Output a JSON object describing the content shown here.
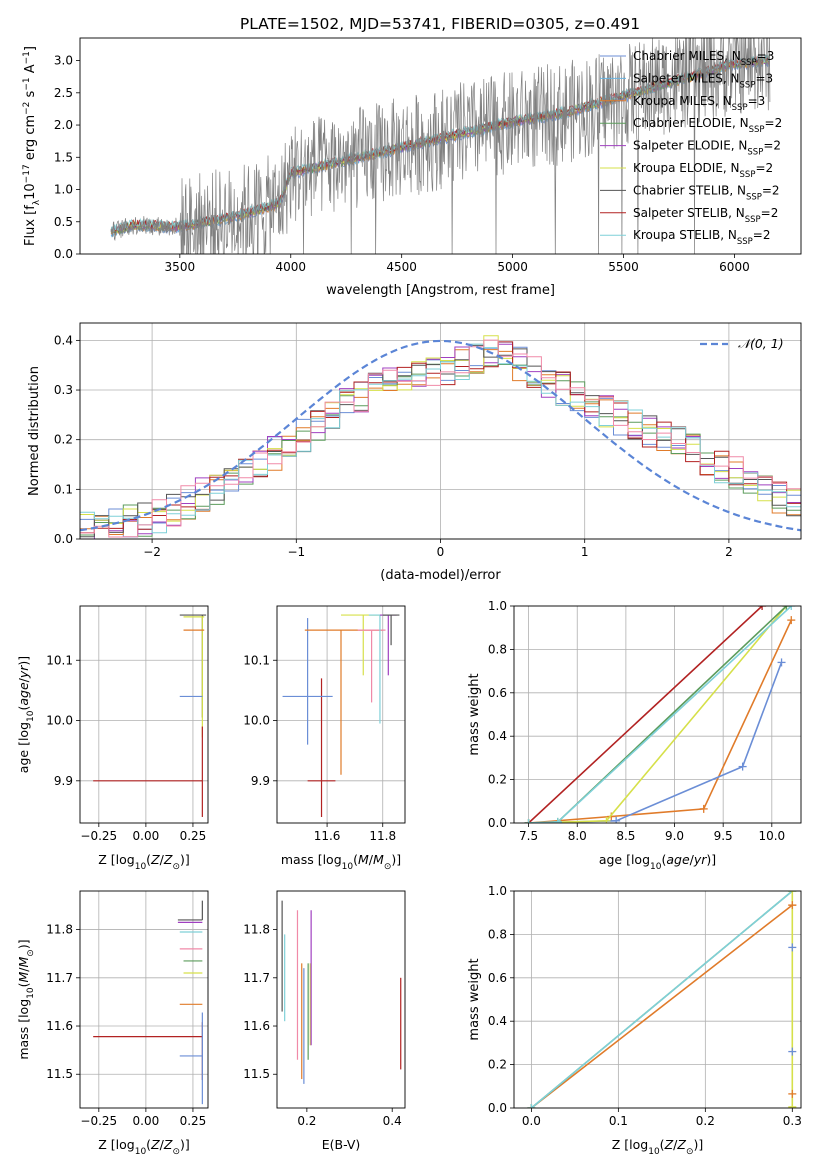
{
  "figure": {
    "title": "PLATE=1502, MJD=53741, FIBERID=0305, z=0.491"
  },
  "chart_data": [
    {
      "id": "spectrum",
      "type": "line",
      "xlabel": "wavelength [Angstrom, rest frame]",
      "ylabel": "Flux [f_λ 10^-17 erg cm^-2 s^-1 A^-1]",
      "xlim": [
        3050,
        6300
      ],
      "ylim": [
        0,
        3.35
      ],
      "xticks": [
        3500,
        4000,
        4500,
        5000,
        5500,
        6000
      ],
      "yticks": [
        0.0,
        0.5,
        1.0,
        1.5,
        2.0,
        2.5,
        3.0
      ],
      "grid": false,
      "legend_position": "top-right",
      "data_color": "#808080",
      "data_range": [
        3190,
        6160
      ],
      "continuum": [
        {
          "x": 3190,
          "y": 0.35
        },
        {
          "x": 3300,
          "y": 0.45
        },
        {
          "x": 3500,
          "y": 0.42
        },
        {
          "x": 3750,
          "y": 0.58
        },
        {
          "x": 3950,
          "y": 0.78
        },
        {
          "x": 4000,
          "y": 1.25
        },
        {
          "x": 4250,
          "y": 1.45
        },
        {
          "x": 4500,
          "y": 1.65
        },
        {
          "x": 4750,
          "y": 1.85
        },
        {
          "x": 5000,
          "y": 2.05
        },
        {
          "x": 5250,
          "y": 2.2
        },
        {
          "x": 5500,
          "y": 2.45
        },
        {
          "x": 5750,
          "y": 2.7
        },
        {
          "x": 6000,
          "y": 2.95
        },
        {
          "x": 6160,
          "y": 3.0
        }
      ],
      "series": [
        {
          "name": "Chabrier MILES, N_SSP=3",
          "color": "#6b8ed6"
        },
        {
          "name": "Salpeter MILES, N_SSP=3",
          "color": "#69b3e0"
        },
        {
          "name": "Kroupa MILES, N_SSP=3",
          "color": "#e07b2a"
        },
        {
          "name": "Chabrier ELODIE, N_SSP=2",
          "color": "#5c9c5c"
        },
        {
          "name": "Salpeter ELODIE, N_SSP=2",
          "color": "#a040c0"
        },
        {
          "name": "Kroupa ELODIE, N_SSP=2",
          "color": "#d6e04a"
        },
        {
          "name": "Chabrier STELIB, N_SSP=2",
          "color": "#555555"
        },
        {
          "name": "Salpeter STELIB, N_SSP=2",
          "color": "#b22222"
        },
        {
          "name": "Kroupa STELIB, N_SSP=2",
          "color": "#7fd0d8"
        }
      ]
    },
    {
      "id": "residuals",
      "type": "line",
      "xlabel": "(data-model)/error",
      "ylabel": "Normed distribution",
      "xlim": [
        -2.5,
        2.5
      ],
      "ylim": [
        0,
        0.435
      ],
      "xticks": [
        -2,
        -1,
        0,
        1,
        2
      ],
      "yticks": [
        0.0,
        0.1,
        0.2,
        0.3,
        0.4
      ],
      "grid": true,
      "legend_position": "top-right",
      "gaussian": {
        "name": "𝒩(0, 1)",
        "color": "#5b85d6",
        "mu": 0,
        "sigma": 1
      },
      "histogram_colors": [
        "#6b8ed6",
        "#e07b2a",
        "#5c9c5c",
        "#a040c0",
        "#d6e04a",
        "#555555",
        "#b22222",
        "#7fd0d8",
        "#f08aa8"
      ],
      "histogram_envelope": [
        {
          "x": -2.5,
          "y": 0.03
        },
        {
          "x": -2.0,
          "y": 0.04
        },
        {
          "x": -1.5,
          "y": 0.11
        },
        {
          "x": -1.0,
          "y": 0.2
        },
        {
          "x": -0.5,
          "y": 0.3
        },
        {
          "x": 0.0,
          "y": 0.34
        },
        {
          "x": 0.4,
          "y": 0.38
        },
        {
          "x": 0.8,
          "y": 0.31
        },
        {
          "x": 1.2,
          "y": 0.25
        },
        {
          "x": 1.6,
          "y": 0.2
        },
        {
          "x": 2.0,
          "y": 0.14
        },
        {
          "x": 2.5,
          "y": 0.06
        }
      ]
    },
    {
      "id": "age-vs-Z",
      "type": "scatter",
      "xlabel": "Z [log10(Z/Z⊙)]",
      "ylabel": "age [log10(age/yr)]",
      "xlim": [
        -0.35,
        0.33
      ],
      "ylim": [
        9.83,
        10.19
      ],
      "xticks": [
        "-0.25",
        "0.00",
        "0.25"
      ],
      "yticks": [
        "9.9",
        "10.0",
        "10.1"
      ],
      "grid": true,
      "points": [
        {
          "x": 0.3,
          "y": 10.175,
          "xerr": [
            0.12,
            0.02
          ],
          "yerr": [
            0.17,
            0.0
          ],
          "color": "#555555"
        },
        {
          "x": 0.3,
          "y": 10.172,
          "xerr": [
            0.1,
            0.01
          ],
          "yerr": [
            0.2,
            0.0
          ],
          "color": "#d6e04a"
        },
        {
          "x": 0.3,
          "y": 10.15,
          "xerr": [
            0.1,
            0.01
          ],
          "yerr": [
            0.0,
            0.0
          ],
          "color": "#e07b2a"
        },
        {
          "x": 0.3,
          "y": 10.04,
          "xerr": [
            0.12,
            0.0
          ],
          "yerr": [
            0.0,
            0.0
          ],
          "color": "#6b8ed6"
        },
        {
          "x": 0.3,
          "y": 9.9,
          "xerr": [
            0.58,
            0.0
          ],
          "yerr": [
            0.06,
            0.09
          ],
          "color": "#b22222"
        }
      ]
    },
    {
      "id": "age-vs-mass",
      "type": "scatter",
      "xlabel": "mass [log10(M/M⊙)]",
      "ylabel": "",
      "xlim": [
        11.42,
        11.88
      ],
      "ylim": [
        9.83,
        10.19
      ],
      "xticks": [
        "11.6",
        "11.8"
      ],
      "yticks": [
        "9.9",
        "10.0",
        "10.1"
      ],
      "grid": true,
      "points": [
        {
          "x": 11.58,
          "y": 9.9,
          "xerr": [
            0.05,
            0.05
          ],
          "yerr": [
            0.06,
            0.17
          ],
          "color": "#b22222"
        },
        {
          "x": 11.53,
          "y": 10.04,
          "xerr": [
            0.09,
            0.09
          ],
          "yerr": [
            0.08,
            0.13
          ],
          "color": "#6b8ed6"
        },
        {
          "x": 11.65,
          "y": 10.15,
          "xerr": [
            0.13,
            0.15
          ],
          "yerr": [
            0.24,
            0.0
          ],
          "color": "#e07b2a"
        },
        {
          "x": 11.73,
          "y": 10.175,
          "xerr": [
            0.08,
            0.08
          ],
          "yerr": [
            0.1,
            0.0
          ],
          "color": "#d6e04a"
        },
        {
          "x": 11.76,
          "y": 10.15,
          "xerr": [
            0.05,
            0.05
          ],
          "yerr": [
            0.12,
            0.0
          ],
          "color": "#f08aa8"
        },
        {
          "x": 11.79,
          "y": 10.175,
          "xerr": [
            0.04,
            0.04
          ],
          "yerr": [
            0.18,
            0.0
          ],
          "color": "#7fd0d8"
        },
        {
          "x": 11.82,
          "y": 10.175,
          "xerr": [
            0.03,
            0.03
          ],
          "yerr": [
            0.1,
            0.0
          ],
          "color": "#a040c0"
        },
        {
          "x": 11.83,
          "y": 10.175,
          "xerr": [
            0.03,
            0.03
          ],
          "yerr": [
            0.05,
            0.0
          ],
          "color": "#555555"
        }
      ]
    },
    {
      "id": "mass-weight-vs-age",
      "type": "line",
      "xlabel": "age [log10(age/yr)]",
      "ylabel": "mass weight",
      "xlim": [
        7.35,
        10.3
      ],
      "ylim": [
        0,
        1
      ],
      "xticks": [
        7.5,
        8.0,
        8.5,
        9.0,
        9.5,
        10.0
      ],
      "yticks": [
        0.0,
        0.2,
        0.4,
        0.6,
        0.8,
        1.0
      ],
      "grid": true,
      "series": [
        {
          "color": "#b22222",
          "x": [
            7.5,
            9.9
          ],
          "y": [
            0.0,
            1.0
          ]
        },
        {
          "color": "#e07b2a",
          "x": [
            7.5,
            8.35,
            9.3,
            10.2
          ],
          "y": [
            0.0,
            0.03,
            0.065,
            0.935
          ]
        },
        {
          "color": "#6b8ed6",
          "x": [
            7.5,
            8.4,
            9.7,
            10.1
          ],
          "y": [
            0.0,
            0.01,
            0.26,
            0.74
          ]
        },
        {
          "color": "#d6e04a",
          "x": [
            7.5,
            8.3,
            10.15
          ],
          "y": [
            0.0,
            0.01,
            1.0
          ]
        },
        {
          "color": "#5c9c5c",
          "x": [
            7.5,
            7.8,
            10.15
          ],
          "y": [
            0.0,
            0.005,
            1.0
          ]
        },
        {
          "color": "#7fd0d8",
          "x": [
            7.5,
            7.8,
            10.2
          ],
          "y": [
            0.0,
            0.005,
            1.0
          ]
        }
      ]
    },
    {
      "id": "mass-vs-Z",
      "type": "scatter",
      "xlabel": "Z [log10(Z/Z⊙)]",
      "ylabel": "mass [log10(M/M⊙)]",
      "xlim": [
        -0.35,
        0.33
      ],
      "ylim": [
        11.43,
        11.88
      ],
      "xticks": [
        "-0.25",
        "0.00",
        "0.25"
      ],
      "yticks": [
        "11.5",
        "11.6",
        "11.7",
        "11.8"
      ],
      "grid": true,
      "points": [
        {
          "x": 0.3,
          "y": 11.578,
          "xerr": [
            0.58,
            0.0
          ],
          "yerr": [
            0.09,
            0.03
          ],
          "color": "#b22222"
        },
        {
          "x": 0.3,
          "y": 11.538,
          "xerr": [
            0.12,
            0.0
          ],
          "yerr": [
            0.1,
            0.09
          ],
          "color": "#6b8ed6"
        },
        {
          "x": 0.3,
          "y": 11.645,
          "xerr": [
            0.12,
            0.0
          ],
          "yerr": [
            0.0,
            0.0
          ],
          "color": "#e07b2a"
        },
        {
          "x": 0.3,
          "y": 11.71,
          "xerr": [
            0.1,
            0.0
          ],
          "yerr": [
            0.0,
            0.0
          ],
          "color": "#d6e04a"
        },
        {
          "x": 0.3,
          "y": 11.735,
          "xerr": [
            0.1,
            0.0
          ],
          "yerr": [
            0.0,
            0.0
          ],
          "color": "#5c9c5c"
        },
        {
          "x": 0.3,
          "y": 11.76,
          "xerr": [
            0.12,
            0.0
          ],
          "yerr": [
            0.0,
            0.0
          ],
          "color": "#f08aa8"
        },
        {
          "x": 0.3,
          "y": 11.795,
          "xerr": [
            0.12,
            0.0
          ],
          "yerr": [
            0.0,
            0.0
          ],
          "color": "#7fd0d8"
        },
        {
          "x": 0.3,
          "y": 11.815,
          "xerr": [
            0.13,
            0.0
          ],
          "yerr": [
            0.0,
            0.0
          ],
          "color": "#a040c0"
        },
        {
          "x": 0.3,
          "y": 11.82,
          "xerr": [
            0.13,
            0.0
          ],
          "yerr": [
            0.0,
            0.04
          ],
          "color": "#555555"
        }
      ]
    },
    {
      "id": "mass-vs-ebv",
      "type": "scatter",
      "xlabel": "E(B-V)",
      "ylabel": "",
      "xlim": [
        0.13,
        0.43
      ],
      "ylim": [
        11.43,
        11.88
      ],
      "xticks": [
        "0.2",
        "0.4"
      ],
      "yticks": [
        "11.5",
        "11.6",
        "11.7",
        "11.8"
      ],
      "grid": false,
      "points": [
        {
          "x": 0.142,
          "y": 11.78,
          "yerr": [
            0.15,
            0.08
          ],
          "color": "#555555"
        },
        {
          "x": 0.148,
          "y": 11.71,
          "yerr": [
            0.1,
            0.08
          ],
          "color": "#7fd0d8"
        },
        {
          "x": 0.178,
          "y": 11.65,
          "yerr": [
            0.12,
            0.19
          ],
          "color": "#f08aa8"
        },
        {
          "x": 0.188,
          "y": 11.6,
          "yerr": [
            0.11,
            0.13
          ],
          "color": "#e07b2a"
        },
        {
          "x": 0.193,
          "y": 11.6,
          "yerr": [
            0.12,
            0.12
          ],
          "color": "#6b8ed6"
        },
        {
          "x": 0.203,
          "y": 11.64,
          "yerr": [
            0.11,
            0.09
          ],
          "color": "#5c9c5c"
        },
        {
          "x": 0.208,
          "y": 11.68,
          "yerr": [
            0.12,
            0.05
          ],
          "color": "#d6e04a"
        },
        {
          "x": 0.21,
          "y": 11.73,
          "yerr": [
            0.17,
            0.11
          ],
          "color": "#a040c0"
        },
        {
          "x": 0.42,
          "y": 11.6,
          "yerr": [
            0.09,
            0.1
          ],
          "color": "#b22222"
        }
      ]
    },
    {
      "id": "mass-weight-vs-Z",
      "type": "line",
      "xlabel": "Z [log10(Z/Z⊙)]",
      "ylabel": "mass weight",
      "xlim": [
        -0.02,
        0.31
      ],
      "ylim": [
        0,
        1
      ],
      "xticks": [
        0.0,
        0.1,
        0.2,
        0.3
      ],
      "yticks": [
        0.0,
        0.2,
        0.4,
        0.6,
        0.8,
        1.0
      ],
      "grid": true,
      "series": [
        {
          "color": "#e07b2a",
          "x": [
            0.0,
            0.3
          ],
          "y": [
            0.0,
            0.935
          ]
        },
        {
          "color": "#5c9c5c",
          "x": [
            0.0,
            0.3
          ],
          "y": [
            0.0,
            1.0
          ]
        },
        {
          "color": "#7fd0d8",
          "x": [
            0.0,
            0.3
          ],
          "y": [
            0.0,
            1.0
          ]
        },
        {
          "color": "#d6e04a",
          "x": [
            0.3,
            0.3
          ],
          "y": [
            0.0,
            1.0
          ]
        }
      ],
      "markers": [
        {
          "color": "#e07b2a",
          "x": 0.3,
          "y": 0.935
        },
        {
          "color": "#e07b2a",
          "x": 0.3,
          "y": 0.065
        },
        {
          "color": "#6b8ed6",
          "x": 0.3,
          "y": 0.74
        },
        {
          "color": "#6b8ed6",
          "x": 0.3,
          "y": 0.26
        },
        {
          "color": "#d6e04a",
          "x": 0.3,
          "y": 0.005
        }
      ]
    }
  ]
}
